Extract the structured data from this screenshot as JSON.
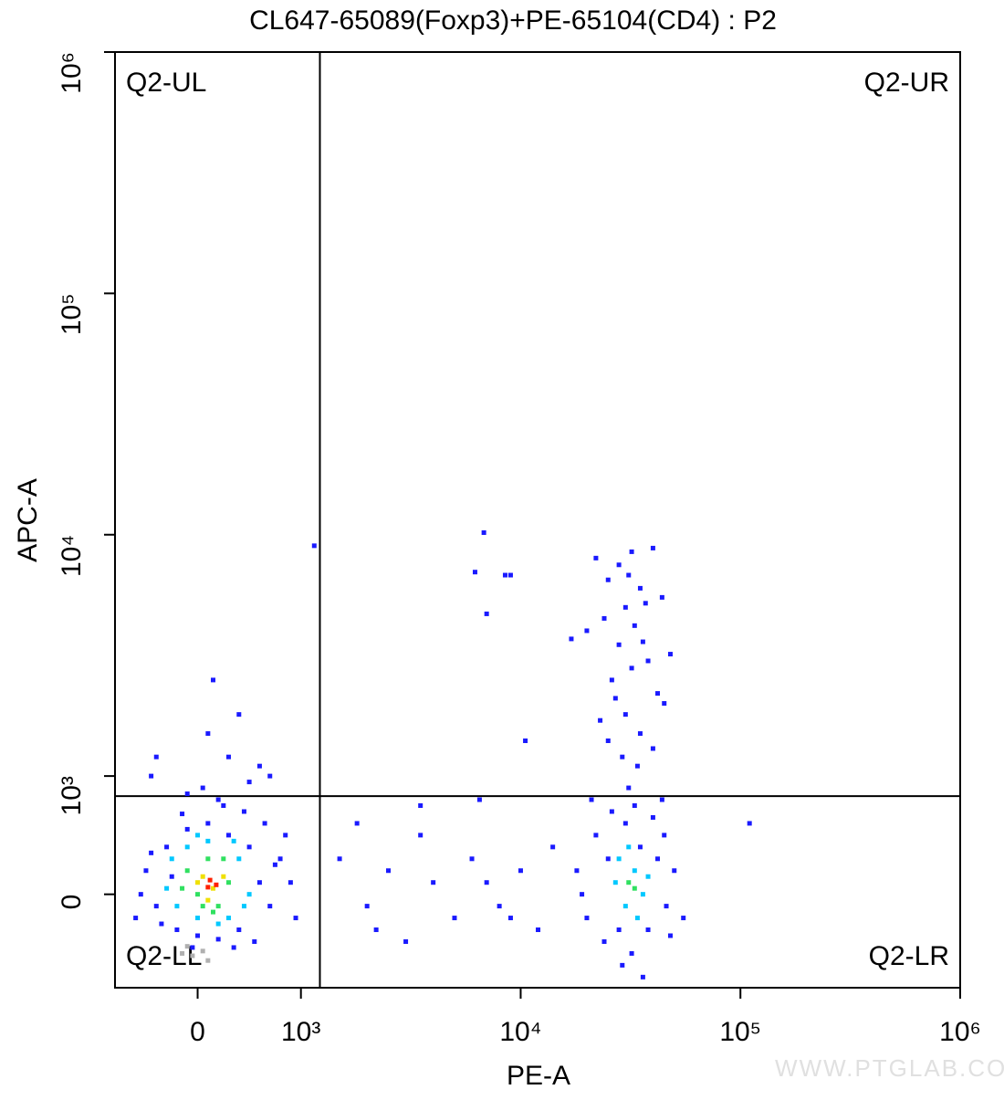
{
  "chart_data": {
    "type": "scatter",
    "title": "CL647-65089(Foxp3)+PE-65104(CD4) : P2",
    "x_label": "PE-A",
    "y_label": "APC-A",
    "xscale": "biexponential",
    "yscale": "biexponential",
    "xlim": [
      -800,
      1000000
    ],
    "ylim": [
      -790,
      1000000
    ],
    "xticks": [
      0,
      {
        "value": 1000,
        "label": "10³"
      },
      {
        "value": 10000,
        "label": "10⁴"
      },
      {
        "value": 100000,
        "label": "10⁵"
      },
      {
        "value": 1000000,
        "label": "10⁶"
      }
    ],
    "yticks": [
      0,
      {
        "value": 1000,
        "label": "10³"
      },
      {
        "value": 10000,
        "label": "10⁴"
      },
      {
        "value": 100000,
        "label": "10⁵"
      },
      {
        "value": 1000000,
        "label": "10⁶"
      }
    ],
    "quadrant_gate": {
      "x": 1220,
      "y": 830
    },
    "quadrant_labels": {
      "ul": "Q2-UL",
      "ur": "Q2-UR",
      "ll": "Q2-LL",
      "lr": "Q2-LR"
    },
    "watermark": "WWW.PTGLAB.COM",
    "series": [
      {
        "color": "#1a1aff",
        "x": [
          -500,
          -400,
          -300,
          -200,
          -100,
          0,
          100,
          200,
          300,
          400,
          500,
          600,
          700,
          800,
          650,
          -550,
          -450,
          -350,
          900,
          950,
          -600,
          450,
          -150,
          250,
          550,
          850,
          -250,
          750,
          350,
          -50,
          -400,
          100,
          150,
          300,
          400,
          600,
          -450,
          50,
          500,
          700,
          -100,
          200,
          1500,
          2000,
          2500,
          3000,
          3500,
          4000,
          5000,
          6000,
          7000,
          8000,
          10000,
          12000,
          14000,
          1800,
          2200,
          9000,
          6500,
          3500,
          110000,
          18000,
          20000,
          22000,
          24000,
          26000,
          28000,
          30000,
          32000,
          35000,
          38000,
          42000,
          46000,
          50000,
          55000,
          21000,
          25000,
          29000,
          33000,
          40000,
          45000,
          48000,
          19000,
          36000,
          31000,
          44000,
          22000,
          25000,
          28000,
          30000,
          32000,
          35000,
          40000,
          24000,
          28000,
          33000,
          38000,
          42000,
          26000,
          30000,
          35000,
          23000,
          40000,
          45000,
          20000,
          27000,
          32000,
          36000,
          29000,
          34000,
          31000,
          17000,
          25000,
          37000,
          44000,
          48000,
          6200,
          6800,
          8500,
          10500,
          1150,
          7000,
          9000
        ],
        "y": [
          200,
          -100,
          400,
          -300,
          550,
          -350,
          600,
          -380,
          500,
          -300,
          400,
          100,
          -100,
          300,
          600,
          0,
          350,
          -250,
          100,
          -200,
          -200,
          700,
          680,
          750,
          -400,
          500,
          150,
          250,
          -450,
          -450,
          1200,
          1500,
          2500,
          1200,
          1800,
          1100,
          1000,
          900,
          950,
          1000,
          850,
          800,
          300,
          -100,
          200,
          -400,
          500,
          100,
          -200,
          300,
          100,
          -100,
          200,
          -300,
          400,
          600,
          -300,
          -200,
          800,
          750,
          600,
          200,
          -200,
          500,
          -400,
          700,
          -300,
          600,
          -500,
          400,
          -300,
          300,
          -100,
          200,
          -200,
          800,
          300,
          -600,
          750,
          650,
          500,
          -350,
          0,
          -700,
          900,
          800,
          8000,
          6500,
          7500,
          5000,
          8500,
          6000,
          8800,
          4500,
          3500,
          4200,
          3000,
          2200,
          2500,
          1800,
          1500,
          1700,
          1300,
          2000,
          4000,
          2100,
          2800,
          3600,
          1200,
          1100,
          6800,
          3700,
          1400,
          5200,
          5500,
          3200,
          7000,
          10200,
          6800,
          1400,
          9000,
          4700,
          6800
        ]
      },
      {
        "color": "#00c8ff",
        "x": [
          -250,
          -200,
          -100,
          0,
          100,
          300,
          400,
          500,
          -300,
          200,
          450,
          0,
          350,
          27000,
          30000,
          33000,
          36000,
          28000,
          34000,
          38000,
          31000
        ],
        "y": [
          300,
          -100,
          400,
          -200,
          450,
          -200,
          300,
          0,
          50,
          -250,
          -100,
          500,
          450,
          100,
          -100,
          200,
          0,
          300,
          -200,
          150,
          400
        ]
      },
      {
        "color": "#30e060",
        "x": [
          -100,
          0,
          100,
          200,
          300,
          -150,
          50,
          250,
          150,
          31000,
          33000
        ],
        "y": [
          200,
          0,
          300,
          -100,
          100,
          50,
          -100,
          300,
          -150,
          100,
          50
        ]
      },
      {
        "color": "#f0e000",
        "x": [
          50,
          150,
          250,
          0,
          100
        ],
        "y": [
          150,
          50,
          150,
          100,
          -50
        ]
      },
      {
        "color": "#ff2000",
        "x": [
          120,
          180,
          100
        ],
        "y": [
          120,
          80,
          60
        ]
      },
      {
        "color": "#b0b0b0",
        "x": [
          -150,
          -50,
          50,
          100,
          -100
        ],
        "y": [
          -500,
          -520,
          -480,
          -560,
          -440
        ]
      }
    ]
  }
}
